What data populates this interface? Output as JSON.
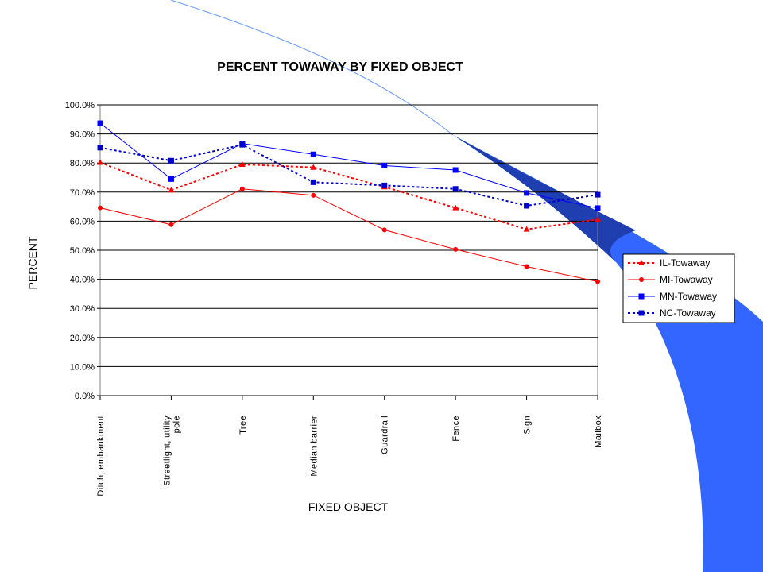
{
  "chart_data": {
    "type": "line",
    "title": "PERCENT TOWAWAY BY FIXED OBJECT",
    "xlabel": "FIXED OBJECT",
    "ylabel": "PERCENT",
    "categories": [
      "Ditch, embankment",
      "Streetlight, utility pole",
      "Tree",
      "Median barrier",
      "Guardrail",
      "Fence",
      "Sign",
      "Mailbox"
    ],
    "category_lines": [
      [
        "Ditch, embankment"
      ],
      [
        "Streetlight, utility",
        "pole"
      ],
      [
        "Tree"
      ],
      [
        "Median barrier"
      ],
      [
        "Guardrail"
      ],
      [
        "Fence"
      ],
      [
        "Sign"
      ],
      [
        "Mailbox"
      ]
    ],
    "ylim": [
      0,
      100
    ],
    "ytick_step": 10,
    "ytick_labels": [
      "0.0%",
      "10.0%",
      "20.0%",
      "30.0%",
      "40.0%",
      "50.0%",
      "60.0%",
      "70.0%",
      "80.0%",
      "90.0%",
      "100.0%"
    ],
    "grid": true,
    "legend_position": "right",
    "series": [
      {
        "name": "IL-Towaway",
        "color": "#ff0000",
        "dash": "dotted",
        "marker": "triangle",
        "values": [
          80.2,
          70.7,
          79.5,
          78.5,
          71.8,
          64.6,
          57.2,
          60.6
        ]
      },
      {
        "name": "MI-Towaway",
        "color": "#ff0000",
        "dash": "solid",
        "marker": "circle",
        "values": [
          64.6,
          58.8,
          71.1,
          68.9,
          57.0,
          50.3,
          44.4,
          39.2
        ]
      },
      {
        "name": "MN-Towaway",
        "color": "#0000ff",
        "dash": "solid",
        "marker": "square",
        "values": [
          93.7,
          74.5,
          86.7,
          83.0,
          79.1,
          77.6,
          69.7,
          64.5
        ]
      },
      {
        "name": "NC-Towaway",
        "color": "#0000cc",
        "dash": "dotted",
        "marker": "square",
        "values": [
          85.3,
          80.8,
          86.3,
          73.4,
          72.3,
          71.1,
          65.3,
          69.1
        ]
      }
    ]
  },
  "theme": {
    "swoosh_dark": "#1f3fb0",
    "swoosh_bright": "#3366ff",
    "arc_color": "#6699ff"
  }
}
